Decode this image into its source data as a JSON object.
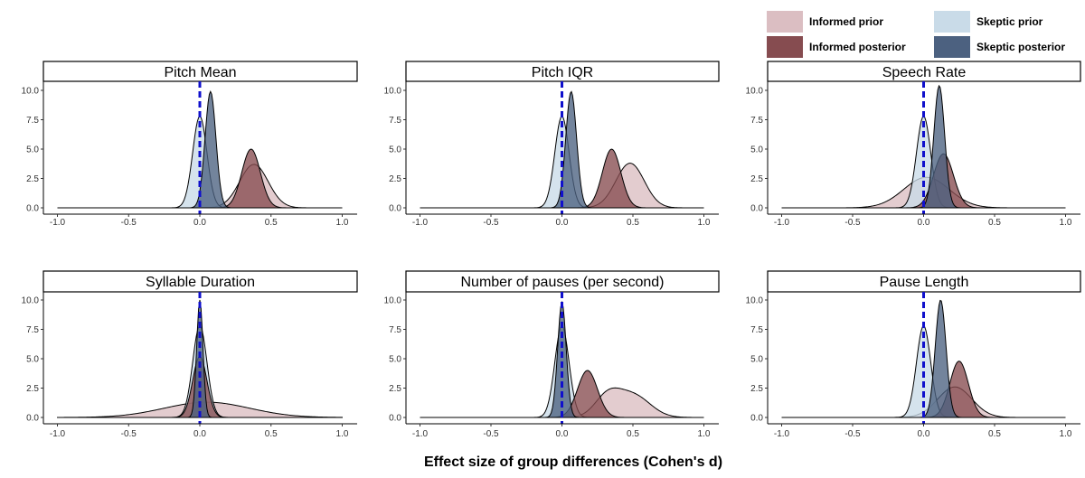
{
  "legend": [
    {
      "label": "Informed prior",
      "color": "#dbbec2",
      "opacity": 1
    },
    {
      "label": "Skeptic prior",
      "color": "#c9dbe8",
      "opacity": 1
    },
    {
      "label": "Informed posterior",
      "color": "#864c50",
      "opacity": 1
    },
    {
      "label": "Skeptic posterior",
      "color": "#4c6180",
      "opacity": 1
    }
  ],
  "xlabel": "Effect size of group differences (Cohen's d)",
  "reference_line": {
    "x": 0,
    "color": "#1010cc"
  },
  "chart_data": [
    {
      "type": "area",
      "title": "Pitch Mean",
      "xlim": [
        -1.0,
        1.0
      ],
      "ylim": [
        0,
        10.5
      ],
      "xticks": [
        -1.0,
        -0.5,
        0.0,
        0.5,
        1.0
      ],
      "xtick_labels": [
        "-1.0",
        "-0.5",
        "0.0",
        "0.5",
        "1.0"
      ],
      "yticks": [
        0,
        2.5,
        5,
        7.5,
        10
      ],
      "ytick_labels": [
        "0.0",
        "2.5",
        "5.0",
        "7.5",
        "10.0"
      ],
      "series": [
        {
          "name": "Informed prior",
          "components": [
            {
              "mu": 0.38,
              "sigma": 0.1,
              "peak": 3.7
            }
          ]
        },
        {
          "name": "Informed posterior",
          "components": [
            {
              "mu": 0.36,
              "sigma": 0.065,
              "peak": 5.0
            }
          ]
        },
        {
          "name": "Skeptic prior",
          "components": [
            {
              "mu": 0.0,
              "sigma": 0.05,
              "peak": 7.8
            }
          ]
        },
        {
          "name": "Skeptic posterior",
          "components": [
            {
              "mu": 0.075,
              "sigma": 0.038,
              "peak": 9.9
            }
          ]
        }
      ]
    },
    {
      "type": "area",
      "title": "Pitch IQR",
      "xlim": [
        -1.0,
        1.0
      ],
      "ylim": [
        0,
        10.5
      ],
      "xticks": [
        -1.0,
        -0.5,
        0.0,
        0.5,
        1.0
      ],
      "xtick_labels": [
        "-1.0",
        "-0.5",
        "0.0",
        "0.5",
        "1.0"
      ],
      "yticks": [
        0,
        2.5,
        5,
        7.5,
        10
      ],
      "ytick_labels": [
        "0.0",
        "2.5",
        "5.0",
        "7.5",
        "10.0"
      ],
      "series": [
        {
          "name": "Informed prior",
          "components": [
            {
              "mu": 0.48,
              "sigma": 0.1,
              "peak": 3.8
            }
          ]
        },
        {
          "name": "Informed posterior",
          "components": [
            {
              "mu": 0.35,
              "sigma": 0.065,
              "peak": 5.0
            }
          ]
        },
        {
          "name": "Skeptic prior",
          "components": [
            {
              "mu": 0.0,
              "sigma": 0.05,
              "peak": 7.8
            }
          ]
        },
        {
          "name": "Skeptic posterior",
          "components": [
            {
              "mu": 0.065,
              "sigma": 0.038,
              "peak": 9.9
            }
          ]
        }
      ]
    },
    {
      "type": "area",
      "title": "Speech Rate",
      "xlim": [
        -1.0,
        1.0
      ],
      "ylim": [
        0,
        10.5
      ],
      "xticks": [
        -1.0,
        -0.5,
        0.0,
        0.5,
        1.0
      ],
      "xtick_labels": [
        "-1.0",
        "-0.5",
        "0.0",
        "0.5",
        "1.0"
      ],
      "yticks": [
        0,
        2.5,
        5,
        7.5,
        10
      ],
      "ytick_labels": [
        "0.0",
        "2.5",
        "5.0",
        "7.5",
        "10.0"
      ],
      "series": [
        {
          "name": "Informed prior",
          "components": [
            {
              "mu": 0.02,
              "sigma": 0.16,
              "peak": 2.6
            }
          ]
        },
        {
          "name": "Informed posterior",
          "components": [
            {
              "mu": 0.14,
              "sigma": 0.07,
              "peak": 4.6
            }
          ]
        },
        {
          "name": "Skeptic prior",
          "components": [
            {
              "mu": 0.0,
              "sigma": 0.05,
              "peak": 7.8
            }
          ]
        },
        {
          "name": "Skeptic posterior",
          "components": [
            {
              "mu": 0.11,
              "sigma": 0.038,
              "peak": 10.4
            }
          ]
        }
      ]
    },
    {
      "type": "area",
      "title": "Syllable Duration",
      "xlim": [
        -1.0,
        1.0
      ],
      "ylim": [
        0,
        10.5
      ],
      "xticks": [
        -1.0,
        -0.5,
        0.0,
        0.5,
        1.0
      ],
      "xtick_labels": [
        "-1.0",
        "-0.5",
        "0.0",
        "0.5",
        "1.0"
      ],
      "yticks": [
        0,
        2.5,
        5,
        7.5,
        10
      ],
      "ytick_labels": [
        "0.0",
        "2.5",
        "5.0",
        "7.5",
        "10.0"
      ],
      "series": [
        {
          "name": "Informed prior",
          "components": [
            {
              "mu": 0.05,
              "sigma": 0.3,
              "peak": 1.3
            }
          ]
        },
        {
          "name": "Informed posterior",
          "components": [
            {
              "mu": 0.0,
              "sigma": 0.05,
              "peak": 5.2
            }
          ]
        },
        {
          "name": "Skeptic prior",
          "components": [
            {
              "mu": 0.0,
              "sigma": 0.05,
              "peak": 7.8
            }
          ]
        },
        {
          "name": "Skeptic posterior",
          "components": [
            {
              "mu": 0.0,
              "sigma": 0.022,
              "peak": 10.0
            }
          ]
        }
      ]
    },
    {
      "type": "area",
      "title": "Number of pauses (per second)",
      "xlim": [
        -1.0,
        1.0
      ],
      "ylim": [
        0,
        10.5
      ],
      "xticks": [
        -1.0,
        -0.5,
        0.0,
        0.5,
        1.0
      ],
      "xtick_labels": [
        "-1.0",
        "-0.5",
        "0.0",
        "0.5",
        "1.0"
      ],
      "yticks": [
        0,
        2.5,
        5,
        7.5,
        10
      ],
      "ytick_labels": [
        "0.0",
        "2.5",
        "5.0",
        "7.5",
        "10.0"
      ],
      "series": [
        {
          "name": "Informed prior",
          "components": [
            {
              "mu": 0.32,
              "sigma": 0.09,
              "peak": 1.7
            },
            {
              "mu": 0.5,
              "sigma": 0.12,
              "peak": 1.9
            }
          ]
        },
        {
          "name": "Informed posterior",
          "components": [
            {
              "mu": 0.18,
              "sigma": 0.07,
              "peak": 4.0
            }
          ]
        },
        {
          "name": "Skeptic prior",
          "components": [
            {
              "mu": 0.0,
              "sigma": 0.05,
              "peak": 7.8
            }
          ]
        },
        {
          "name": "Skeptic posterior",
          "components": [
            {
              "mu": 0.0,
              "sigma": 0.03,
              "peak": 9.8
            }
          ]
        }
      ]
    },
    {
      "type": "area",
      "title": "Pause Length",
      "xlim": [
        -1.0,
        1.0
      ],
      "ylim": [
        0,
        10.5
      ],
      "xticks": [
        -1.0,
        -0.5,
        0.0,
        0.5,
        1.0
      ],
      "xtick_labels": [
        "-1.0",
        "-0.5",
        "0.0",
        "0.5",
        "1.0"
      ],
      "yticks": [
        0,
        2.5,
        5,
        7.5,
        10
      ],
      "ytick_labels": [
        "0.0",
        "2.5",
        "5.0",
        "7.5",
        "10.0"
      ],
      "series": [
        {
          "name": "Informed prior",
          "components": [
            {
              "mu": 0.22,
              "sigma": 0.12,
              "peak": 2.6
            }
          ]
        },
        {
          "name": "Informed posterior",
          "components": [
            {
              "mu": 0.25,
              "sigma": 0.065,
              "peak": 4.8
            }
          ]
        },
        {
          "name": "Skeptic prior",
          "components": [
            {
              "mu": 0.0,
              "sigma": 0.05,
              "peak": 7.8
            }
          ]
        },
        {
          "name": "Skeptic posterior",
          "components": [
            {
              "mu": 0.12,
              "sigma": 0.038,
              "peak": 10.0
            }
          ]
        }
      ]
    }
  ]
}
